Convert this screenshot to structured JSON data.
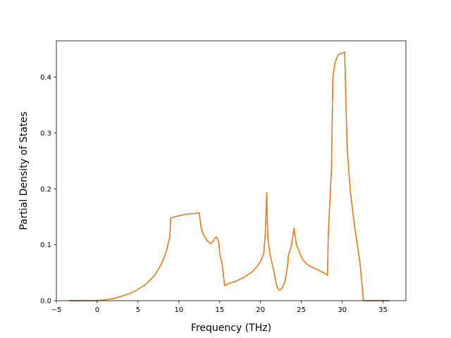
{
  "chart_data": {
    "type": "line",
    "title": "",
    "xlabel": "Frequency (THz)",
    "ylabel": "Partial Density of States",
    "xlim": [
      -5.0,
      37.8
    ],
    "ylim": [
      0.0,
      0.465
    ],
    "xticks": [
      -5,
      0,
      5,
      10,
      15,
      20,
      25,
      30,
      35
    ],
    "xtick_labels": [
      "−5",
      "0",
      "5",
      "10",
      "15",
      "20",
      "25",
      "30",
      "35"
    ],
    "yticks": [
      0.0,
      0.1,
      0.2,
      0.3,
      0.4
    ],
    "ytick_labels": [
      "0.0",
      "0.1",
      "0.2",
      "0.3",
      "0.4"
    ],
    "grid": false,
    "series": [
      {
        "color": "#1f77b4",
        "points": [
          [
            -3.4,
            0.0
          ],
          [
            0.0,
            0.0
          ],
          [
            1.0,
            0.0015
          ],
          [
            2.0,
            0.004
          ],
          [
            3.0,
            0.008
          ],
          [
            4.0,
            0.013
          ],
          [
            5.0,
            0.02
          ],
          [
            6.0,
            0.03
          ],
          [
            7.0,
            0.045
          ],
          [
            7.5,
            0.056
          ],
          [
            8.0,
            0.07
          ],
          [
            8.5,
            0.09
          ],
          [
            8.9,
            0.115
          ],
          [
            9.0,
            0.148
          ],
          [
            10.0,
            0.152
          ],
          [
            11.0,
            0.155
          ],
          [
            12.0,
            0.156
          ],
          [
            12.5,
            0.157
          ],
          [
            12.7,
            0.132
          ],
          [
            13.0,
            0.118
          ],
          [
            13.5,
            0.107
          ],
          [
            13.9,
            0.102
          ],
          [
            14.2,
            0.107
          ],
          [
            14.5,
            0.113
          ],
          [
            14.6,
            0.114
          ],
          [
            14.9,
            0.105
          ],
          [
            15.0,
            0.085
          ],
          [
            15.3,
            0.065
          ],
          [
            15.6,
            0.027
          ],
          [
            16.0,
            0.03
          ],
          [
            17.0,
            0.035
          ],
          [
            18.0,
            0.042
          ],
          [
            19.0,
            0.052
          ],
          [
            19.5,
            0.06
          ],
          [
            20.0,
            0.07
          ],
          [
            20.4,
            0.085
          ],
          [
            20.6,
            0.125
          ],
          [
            20.75,
            0.193
          ],
          [
            20.9,
            0.11
          ],
          [
            21.2,
            0.08
          ],
          [
            21.6,
            0.055
          ],
          [
            22.0,
            0.025
          ],
          [
            22.3,
            0.019
          ],
          [
            22.6,
            0.021
          ],
          [
            23.0,
            0.035
          ],
          [
            23.3,
            0.062
          ],
          [
            23.4,
            0.08
          ],
          [
            23.8,
            0.1
          ],
          [
            24.1,
            0.13
          ],
          [
            24.4,
            0.1
          ],
          [
            25.0,
            0.078
          ],
          [
            25.5,
            0.068
          ],
          [
            26.0,
            0.062
          ],
          [
            27.0,
            0.055
          ],
          [
            28.0,
            0.048
          ],
          [
            28.2,
            0.045
          ],
          [
            28.3,
            0.12
          ],
          [
            28.7,
            0.24
          ],
          [
            28.85,
            0.4
          ],
          [
            29.1,
            0.425
          ],
          [
            29.5,
            0.44
          ],
          [
            30.3,
            0.445
          ],
          [
            30.6,
            0.275
          ],
          [
            31.0,
            0.195
          ],
          [
            31.5,
            0.135
          ],
          [
            32.2,
            0.065
          ],
          [
            32.6,
            0.0
          ],
          [
            35.8,
            0.0
          ]
        ]
      },
      {
        "color": "#ff7f0e",
        "points": [
          [
            -3.4,
            0.0
          ],
          [
            0.0,
            0.0
          ],
          [
            1.0,
            0.0015
          ],
          [
            2.0,
            0.004
          ],
          [
            3.0,
            0.008
          ],
          [
            4.0,
            0.013
          ],
          [
            5.0,
            0.02
          ],
          [
            6.0,
            0.03
          ],
          [
            7.0,
            0.045
          ],
          [
            7.5,
            0.056
          ],
          [
            8.0,
            0.07
          ],
          [
            8.5,
            0.09
          ],
          [
            8.9,
            0.115
          ],
          [
            9.0,
            0.148
          ],
          [
            10.0,
            0.152
          ],
          [
            11.0,
            0.155
          ],
          [
            12.0,
            0.156
          ],
          [
            12.5,
            0.157
          ],
          [
            12.7,
            0.132
          ],
          [
            13.0,
            0.118
          ],
          [
            13.5,
            0.107
          ],
          [
            13.9,
            0.102
          ],
          [
            14.2,
            0.107
          ],
          [
            14.5,
            0.113
          ],
          [
            14.6,
            0.114
          ],
          [
            14.9,
            0.105
          ],
          [
            15.0,
            0.085
          ],
          [
            15.3,
            0.065
          ],
          [
            15.6,
            0.027
          ],
          [
            16.0,
            0.03
          ],
          [
            17.0,
            0.035
          ],
          [
            18.0,
            0.042
          ],
          [
            19.0,
            0.052
          ],
          [
            19.5,
            0.06
          ],
          [
            20.0,
            0.07
          ],
          [
            20.4,
            0.085
          ],
          [
            20.6,
            0.125
          ],
          [
            20.75,
            0.193
          ],
          [
            20.9,
            0.11
          ],
          [
            21.2,
            0.08
          ],
          [
            21.6,
            0.055
          ],
          [
            22.0,
            0.025
          ],
          [
            22.3,
            0.019
          ],
          [
            22.6,
            0.021
          ],
          [
            23.0,
            0.035
          ],
          [
            23.3,
            0.062
          ],
          [
            23.4,
            0.08
          ],
          [
            23.8,
            0.1
          ],
          [
            24.1,
            0.13
          ],
          [
            24.4,
            0.1
          ],
          [
            25.0,
            0.078
          ],
          [
            25.5,
            0.068
          ],
          [
            26.0,
            0.062
          ],
          [
            27.0,
            0.055
          ],
          [
            28.0,
            0.048
          ],
          [
            28.2,
            0.045
          ],
          [
            28.3,
            0.12
          ],
          [
            28.7,
            0.24
          ],
          [
            28.85,
            0.4
          ],
          [
            29.1,
            0.425
          ],
          [
            29.5,
            0.44
          ],
          [
            30.3,
            0.445
          ],
          [
            30.6,
            0.275
          ],
          [
            31.0,
            0.195
          ],
          [
            31.5,
            0.135
          ],
          [
            32.2,
            0.065
          ],
          [
            32.6,
            0.0
          ],
          [
            35.8,
            0.0
          ]
        ]
      }
    ]
  }
}
